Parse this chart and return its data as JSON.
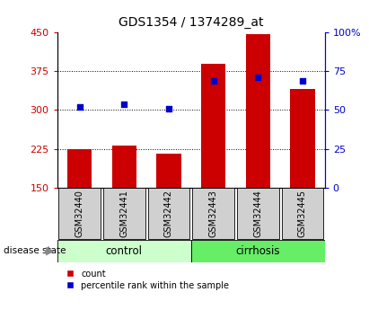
{
  "title": "GDS1354 / 1374289_at",
  "categories": [
    "GSM32440",
    "GSM32441",
    "GSM32442",
    "GSM32443",
    "GSM32444",
    "GSM32445"
  ],
  "bar_values": [
    225,
    232,
    215,
    390,
    447,
    340
  ],
  "percentile_values": [
    52,
    54,
    51,
    69,
    71,
    69
  ],
  "bar_color": "#cc0000",
  "percentile_color": "#0000cc",
  "left_ylim": [
    150,
    450
  ],
  "right_ylim": [
    0,
    100
  ],
  "left_yticks": [
    150,
    225,
    300,
    375,
    450
  ],
  "right_yticks": [
    0,
    25,
    50,
    75,
    100
  ],
  "left_yticklabels": [
    "150",
    "225",
    "300",
    "375",
    "450"
  ],
  "right_yticklabels": [
    "0",
    "25",
    "50",
    "75",
    "100%"
  ],
  "control_color": "#ccffcc",
  "cirrhosis_color": "#66ee66",
  "tick_box_color": "#d0d0d0",
  "disease_state_label": "disease state",
  "legend_count_label": "count",
  "legend_percentile_label": "percentile rank within the sample",
  "background_color": "#ffffff",
  "axis_left_color": "#cc0000",
  "axis_right_color": "#0000cc",
  "grid_lines": [
    225,
    300,
    375
  ]
}
